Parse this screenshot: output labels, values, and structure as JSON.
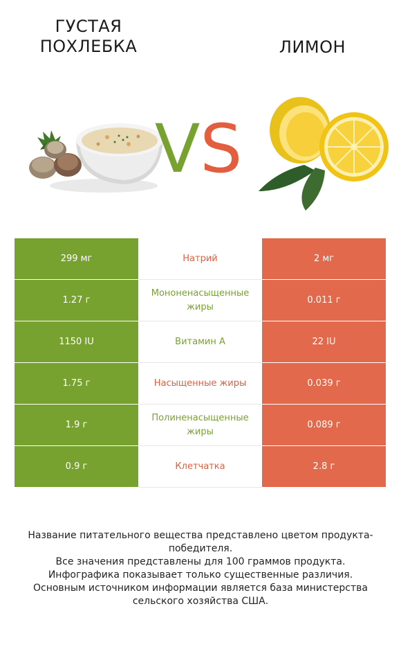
{
  "header": {
    "left_title": "ГУСТАЯ ПОХЛЕБКА",
    "right_title": "ЛИМОН",
    "vs_v": "V",
    "vs_s": "S"
  },
  "colors": {
    "left": "#78a22f",
    "right": "#e2694b"
  },
  "rows": [
    {
      "nutrient": "Натрий",
      "left": "299 мг",
      "right": "2 мг",
      "winner": "right"
    },
    {
      "nutrient": "Мононенасыщенные жиры",
      "left": "1.27 г",
      "right": "0.011 г",
      "winner": "left"
    },
    {
      "nutrient": "Витамин A",
      "left": "1150 IU",
      "right": "22 IU",
      "winner": "left"
    },
    {
      "nutrient": "Насыщенные жиры",
      "left": "1.75 г",
      "right": "0.039 г",
      "winner": "right"
    },
    {
      "nutrient": "Полиненасыщенные жиры",
      "left": "1.9 г",
      "right": "0.089 г",
      "winner": "left"
    },
    {
      "nutrient": "Клетчатка",
      "left": "0.9 г",
      "right": "2.8 г",
      "winner": "right"
    }
  ],
  "footnote": {
    "line1": "Название питательного вещества представлено цветом продукта-победителя.",
    "line2": "Все значения представлены для 100 граммов продукта.",
    "line3": "Инфографика показывает только существенные различия.",
    "line4": "Основным источником информации является база министерства сельского хозяйства США."
  }
}
